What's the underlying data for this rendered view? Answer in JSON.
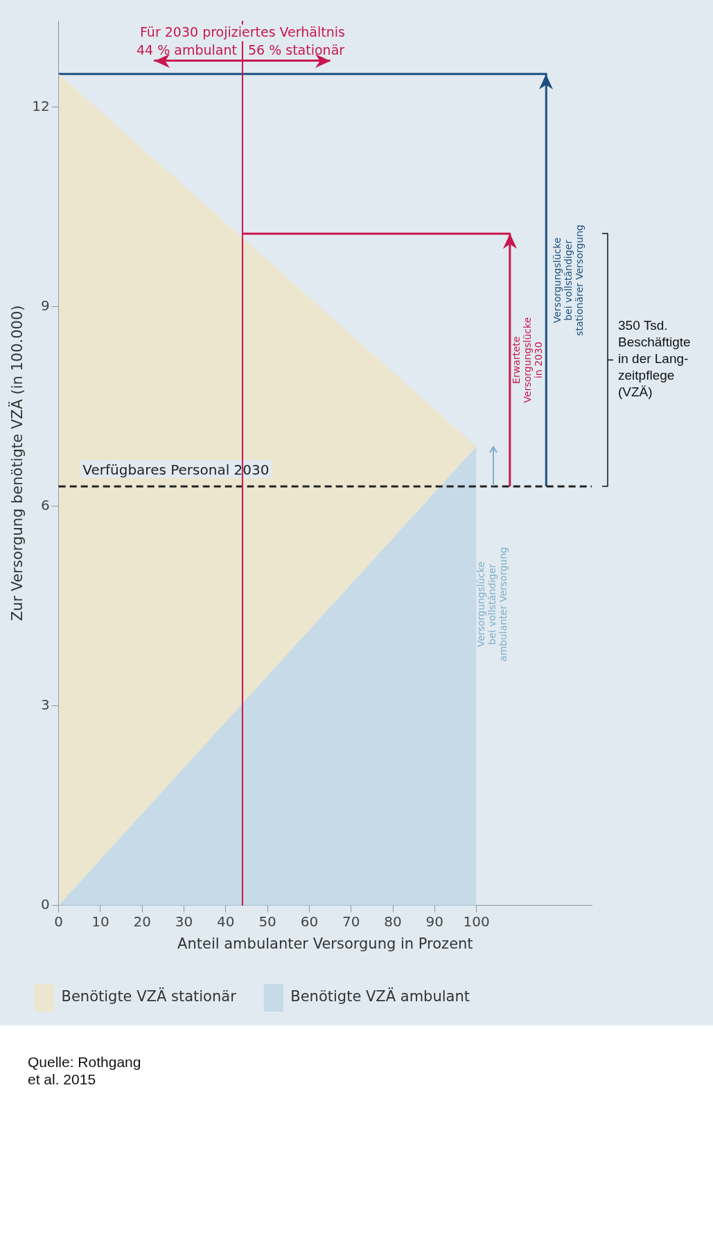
{
  "chart_data": {
    "type": "area",
    "stacked": true,
    "xlabel": "Anteil ambulanter Versorgung in Prozent",
    "ylabel": "Zur Versorgung benötigte VZÄ (in 100.000)",
    "xlim": [
      0,
      127.6
    ],
    "xticks": [
      0,
      10,
      20,
      30,
      40,
      50,
      60,
      70,
      80,
      90,
      100
    ],
    "ylim": [
      0,
      13.3
    ],
    "yticks": [
      0,
      3,
      6,
      9,
      12
    ],
    "grid": false,
    "legend": "bottom",
    "marker": "none",
    "series": [
      {
        "name": "Benötigte VZÄ ambulant",
        "color": "#c6dae7",
        "x": [
          0,
          100
        ],
        "values": [
          0,
          6.9
        ]
      },
      {
        "name": "Benötigte VZÄ stationär",
        "color": "#ece6cf",
        "x": [
          0,
          100
        ],
        "values": [
          12.5,
          0
        ]
      },
      {
        "type": "line",
        "color": "#1d4f7f",
        "x": [
          116.7,
          116.7,
          0
        ],
        "values": [
          6.3,
          12.5,
          12.5
        ]
      },
      {
        "type": "line",
        "color": "#c8174f",
        "x": [
          108,
          108,
          44
        ],
        "values": [
          6.3,
          10.1,
          10.1
        ]
      },
      {
        "type": "line",
        "color": "#c8174f",
        "x": [
          44,
          23,
          44,
          65
        ],
        "values": [
          12.7,
          12.7,
          12.7,
          12.7
        ]
      }
    ],
    "ref_lines": [
      {
        "axis": "y",
        "value": 6.3,
        "label": "Verfügbares Personal 2030",
        "color": "#222222",
        "line_style": "dashed"
      },
      {
        "axis": "x",
        "value": 44,
        "color": "#c8174f"
      }
    ],
    "annotations": [
      "Für 2030 projiziertes Verhältnis",
      "44 % ambulant",
      "56 % stationär",
      "Erwartete\nVersorgungslücke\nin 2030",
      "Versorgungslücke\nbei vollständiger\nstationärer Versorgung",
      "Versorgungslücke\nbei vollständiger\nambulanter Versorgung",
      "350 Tsd.\nBeschäftigte\nin der Lang-\nzeitpflege\n(VZÄ)",
      "Quelle: Rothgang\net al. 2015"
    ]
  }
}
